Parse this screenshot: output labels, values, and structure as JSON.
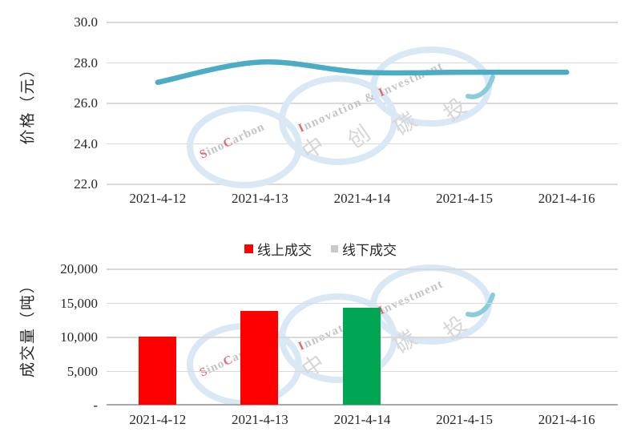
{
  "watermark": {
    "brand_en": "SinoCarbon",
    "tagline_en": "Innovation & Investment",
    "brand_cn": "中创碳投",
    "circle_color": "#D9E8F5",
    "swoosh_color": "#8CCBDD",
    "letter_gray": "#C4C4C4",
    "letter_red": "#E06A6A",
    "cn_gray": "#D6D6D6"
  },
  "chart_data": [
    {
      "type": "line",
      "x": [
        "2021-4-12",
        "2021-4-13",
        "2021-4-14",
        "2021-4-15",
        "2021-4-16"
      ],
      "values": [
        27.0,
        28.0,
        27.5,
        27.5,
        27.5
      ],
      "title": "",
      "xlabel": "",
      "ylabel": "价格（元）",
      "ylim": [
        22.0,
        30.0
      ],
      "ytick_labels": [
        "30.0",
        "28.0",
        "26.0",
        "24.0",
        "22.0"
      ],
      "line_color": "#4BACC6",
      "smoothed": true,
      "grid": true,
      "legend_position": "none"
    },
    {
      "type": "bar",
      "categories": [
        "2021-4-12",
        "2021-4-13",
        "2021-4-14",
        "2021-4-15",
        "2021-4-16"
      ],
      "bars": [
        {
          "date": "2021-4-12",
          "value": 10000,
          "color": "#FF0000"
        },
        {
          "date": "2021-4-13",
          "value": 13800,
          "color": "#FF0000"
        },
        {
          "date": "2021-4-14",
          "value": 14250,
          "color": "#00A651"
        }
      ],
      "title": "",
      "xlabel": "",
      "ylabel": "成交量（吨）",
      "ylim": [
        0,
        20000
      ],
      "ytick_labels": [
        "20,000",
        "15,000",
        "10,000",
        "5,000",
        "-"
      ],
      "grid": true,
      "legend_position": "top-center",
      "legend": [
        {
          "label": "线上成交",
          "color": "#FF0000"
        },
        {
          "label": "线下成交",
          "color": "#C9C9C9"
        }
      ]
    }
  ]
}
